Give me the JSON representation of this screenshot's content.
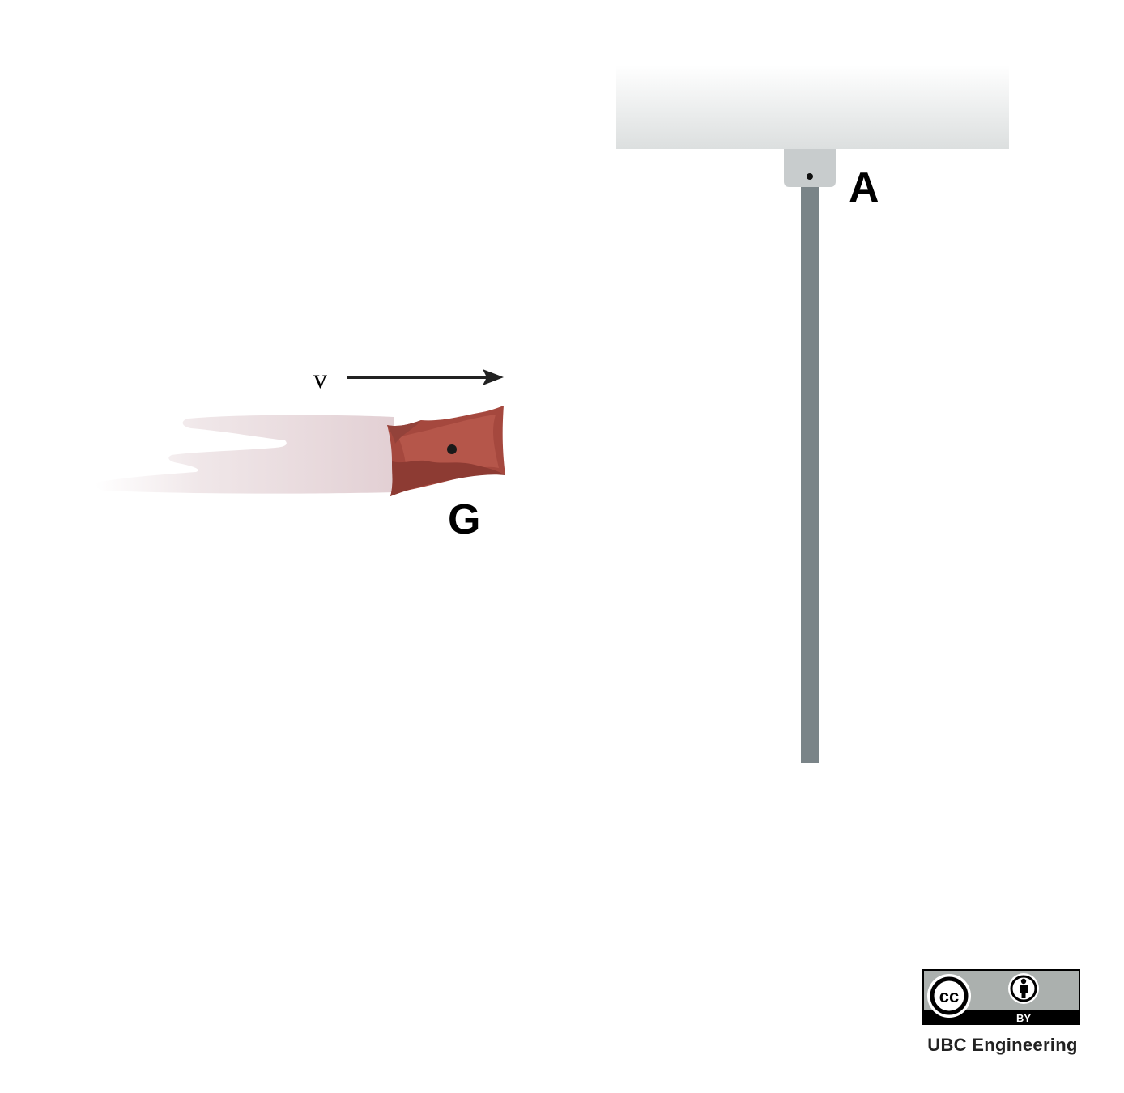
{
  "diagram": {
    "velocity_label": "v",
    "point_a_label": "A",
    "point_g_label": "G",
    "colors": {
      "ceiling_top": "#ffffff",
      "ceiling_bottom": "#dfe1e1",
      "bracket": "#c8cccd",
      "rod": "#7a8488",
      "bag": "#a5483e",
      "bag_dark": "#8a3a32",
      "bag_light": "#b9574b",
      "motion_trail": "#e8d8dc",
      "arrow": "#222222"
    },
    "icons": {
      "pivot": "pivot-dot-icon",
      "center_of_mass": "center-of-mass-dot-icon",
      "license": "cc-by-icon"
    }
  },
  "license": {
    "cc_text": "cc",
    "by_text": "BY",
    "credit": "UBC Engineering"
  }
}
